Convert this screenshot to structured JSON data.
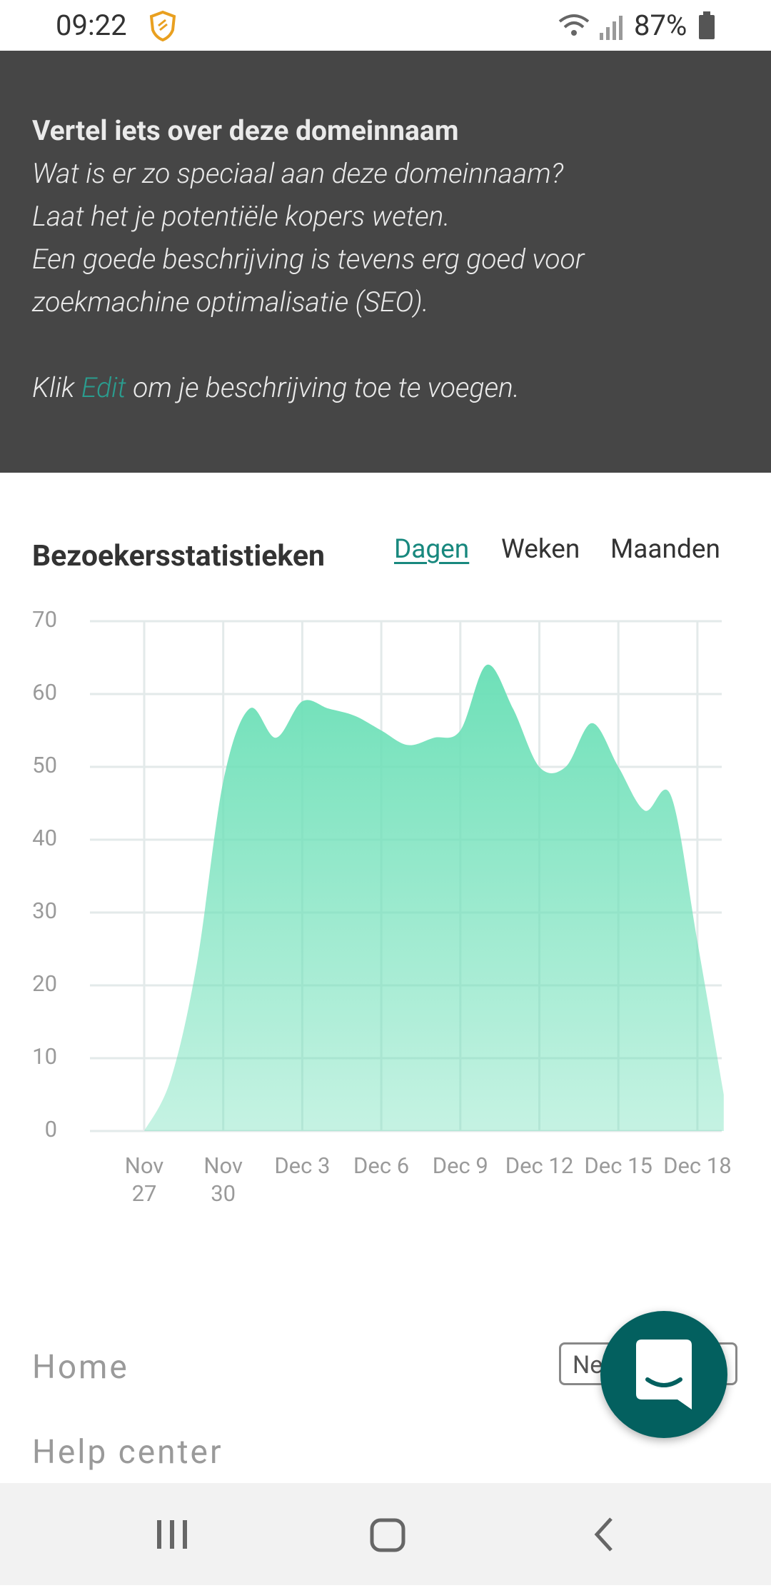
{
  "status_bar": {
    "time": "09:22",
    "battery": "87%"
  },
  "description": {
    "heading": "Vertel iets over deze domeinnaam",
    "lines": [
      "Wat is er zo speciaal aan deze domeinnaam?",
      "Laat het je potentiële kopers weten.",
      "Een goede beschrijving is tevens erg goed voor",
      "zoekmachine optimalisatie (SEO)."
    ],
    "cta_before": "Klik",
    "cta_link": "Edit",
    "cta_after": "om je beschrijving toe te voegen."
  },
  "chart_data": {
    "type": "area",
    "title": "Bezoekersstatistieken",
    "tabs": [
      "Dagen",
      "Weken",
      "Maanden"
    ],
    "active_tab": 0,
    "categories": [
      "Nov 27",
      null,
      null,
      "Nov 30",
      null,
      null,
      "Dec 3",
      null,
      null,
      "Dec 6",
      null,
      null,
      "Dec 9",
      null,
      null,
      "Dec 12",
      null,
      null,
      "Dec 15",
      null,
      null,
      "Dec 18",
      null
    ],
    "values": [
      0,
      7,
      23,
      48,
      58,
      54,
      59,
      58,
      57,
      55,
      53,
      54,
      55,
      64,
      58,
      50,
      50,
      56,
      50,
      44,
      46,
      26,
      5
    ],
    "color": "#6ee0b8",
    "ylim": [
      0,
      70
    ],
    "yticks": [
      0,
      10,
      20,
      30,
      40,
      50,
      60,
      70
    ],
    "grid": true
  },
  "footer": {
    "links": [
      "Home",
      "Help center"
    ],
    "language_button": "Ne"
  }
}
